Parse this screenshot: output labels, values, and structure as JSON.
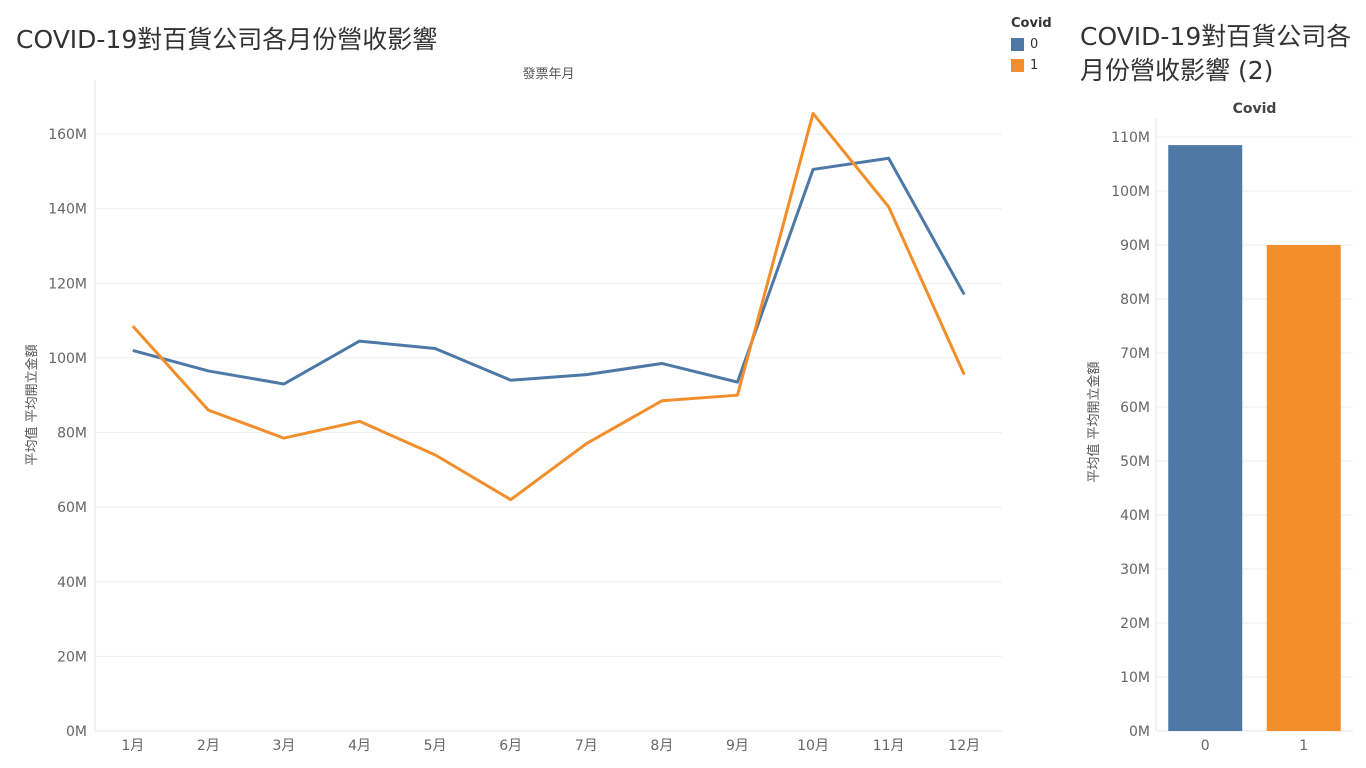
{
  "colors": {
    "series_0": "#4e79a7",
    "series_1": "#f28e2b"
  },
  "legend": {
    "title": "Covid",
    "items": [
      {
        "label": "0",
        "color": "#4e79a7"
      },
      {
        "label": "1",
        "color": "#f28e2b"
      }
    ]
  },
  "chart_data": [
    {
      "type": "line",
      "title": "COVID-19對百貨公司各月份營收影響",
      "xlabel": "發票年月",
      "ylabel": "平均值 平均開立金額",
      "categories": [
        "1月",
        "2月",
        "3月",
        "4月",
        "5月",
        "6月",
        "7月",
        "8月",
        "9月",
        "10月",
        "11月",
        "12月"
      ],
      "series": [
        {
          "name": "0",
          "values": [
            102,
            96.5,
            93,
            104.5,
            102.5,
            94,
            95.5,
            98.5,
            93.5,
            150.5,
            153.5,
            117
          ]
        },
        {
          "name": "1",
          "values": [
            108.5,
            86,
            78.5,
            83,
            74,
            62,
            77,
            88.5,
            90,
            165.5,
            140.5,
            95.5
          ]
        }
      ],
      "ylim": [
        0,
        170
      ],
      "yticks": [
        0,
        20,
        40,
        60,
        80,
        100,
        120,
        140,
        160
      ],
      "ytick_labels": [
        "0M",
        "20M",
        "40M",
        "60M",
        "80M",
        "100M",
        "120M",
        "140M",
        "160M"
      ],
      "grid": true
    },
    {
      "type": "bar",
      "title": "COVID-19對百貨公司各月份營收影響 (2)",
      "xlabel": "Covid",
      "ylabel": "平均值 平均開立金額",
      "categories": [
        "0",
        "1"
      ],
      "values": [
        108.5,
        90
      ],
      "ylim": [
        0,
        112
      ],
      "yticks": [
        0,
        10,
        20,
        30,
        40,
        50,
        60,
        70,
        80,
        90,
        100,
        110
      ],
      "ytick_labels": [
        "0M",
        "10M",
        "20M",
        "30M",
        "40M",
        "50M",
        "60M",
        "70M",
        "80M",
        "90M",
        "100M",
        "110M"
      ],
      "grid": true
    }
  ]
}
